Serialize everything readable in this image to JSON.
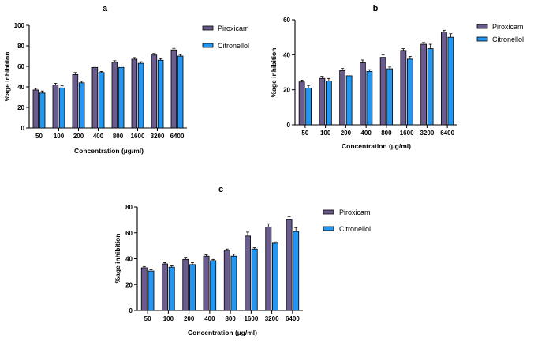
{
  "chart_data": [
    {
      "panel": "a",
      "type": "bar",
      "title": "",
      "xlabel": "Concentration (µg/ml)",
      "ylabel": "%age inhibition",
      "ylim": [
        0,
        100
      ],
      "yticks": [
        0,
        20,
        40,
        60,
        80,
        100
      ],
      "categories": [
        "50",
        "100",
        "200",
        "400",
        "800",
        "1600",
        "3200",
        "6400"
      ],
      "series": [
        {
          "name": "Piroxicam",
          "color": "#6a5c8e",
          "values": [
            37,
            42,
            52,
            59,
            64,
            67,
            71,
            76
          ],
          "errors": [
            1.5,
            1.5,
            2,
            1.5,
            1.5,
            1.5,
            1.5,
            1.5
          ]
        },
        {
          "name": "Citronellol",
          "color": "#2196f3",
          "values": [
            34,
            39,
            44,
            54,
            59,
            63,
            66,
            70
          ],
          "errors": [
            2,
            2,
            1.5,
            1,
            1.5,
            1.5,
            1.5,
            1.5
          ]
        }
      ]
    },
    {
      "panel": "b",
      "type": "bar",
      "title": "",
      "xlabel": "Concentration (µg/ml)",
      "ylabel": "%age inhibition",
      "ylim": [
        0,
        60
      ],
      "yticks": [
        0,
        20,
        40,
        60
      ],
      "categories": [
        "50",
        "100",
        "200",
        "400",
        "800",
        "1600",
        "3200",
        "6400"
      ],
      "series": [
        {
          "name": "Piroxicam",
          "color": "#6a5c8e",
          "values": [
            24.5,
            26.5,
            31,
            35.5,
            38.5,
            42.5,
            46,
            53
          ],
          "errors": [
            1,
            1.2,
            1.2,
            1.5,
            1.5,
            1,
            1,
            1
          ]
        },
        {
          "name": "Citronellol",
          "color": "#2196f3",
          "values": [
            21,
            25,
            28,
            30.5,
            32,
            37.5,
            43.5,
            50
          ],
          "errors": [
            1.5,
            1.5,
            1.5,
            1,
            1,
            1.5,
            2.5,
            2
          ]
        }
      ]
    },
    {
      "panel": "c",
      "type": "bar",
      "title": "",
      "xlabel": "Concentration (µg/ml)",
      "ylabel": "%age inhibition",
      "ylim": [
        0,
        80
      ],
      "yticks": [
        0,
        20,
        40,
        60,
        80
      ],
      "categories": [
        "50",
        "100",
        "200",
        "400",
        "800",
        "1600",
        "3200",
        "6400"
      ],
      "series": [
        {
          "name": "Piroxicam",
          "color": "#6a5c8e",
          "values": [
            33,
            36,
            39.5,
            42,
            46.5,
            57.5,
            64.5,
            70.5
          ],
          "errors": [
            1,
            1,
            1,
            1,
            1,
            3,
            2.5,
            2
          ]
        },
        {
          "name": "Citronellol",
          "color": "#2196f3",
          "values": [
            30.5,
            33.5,
            35.5,
            38.5,
            42,
            47.5,
            52,
            61
          ],
          "errors": [
            1,
            1,
            1.5,
            1,
            1.5,
            1,
            1,
            3
          ]
        }
      ]
    }
  ]
}
